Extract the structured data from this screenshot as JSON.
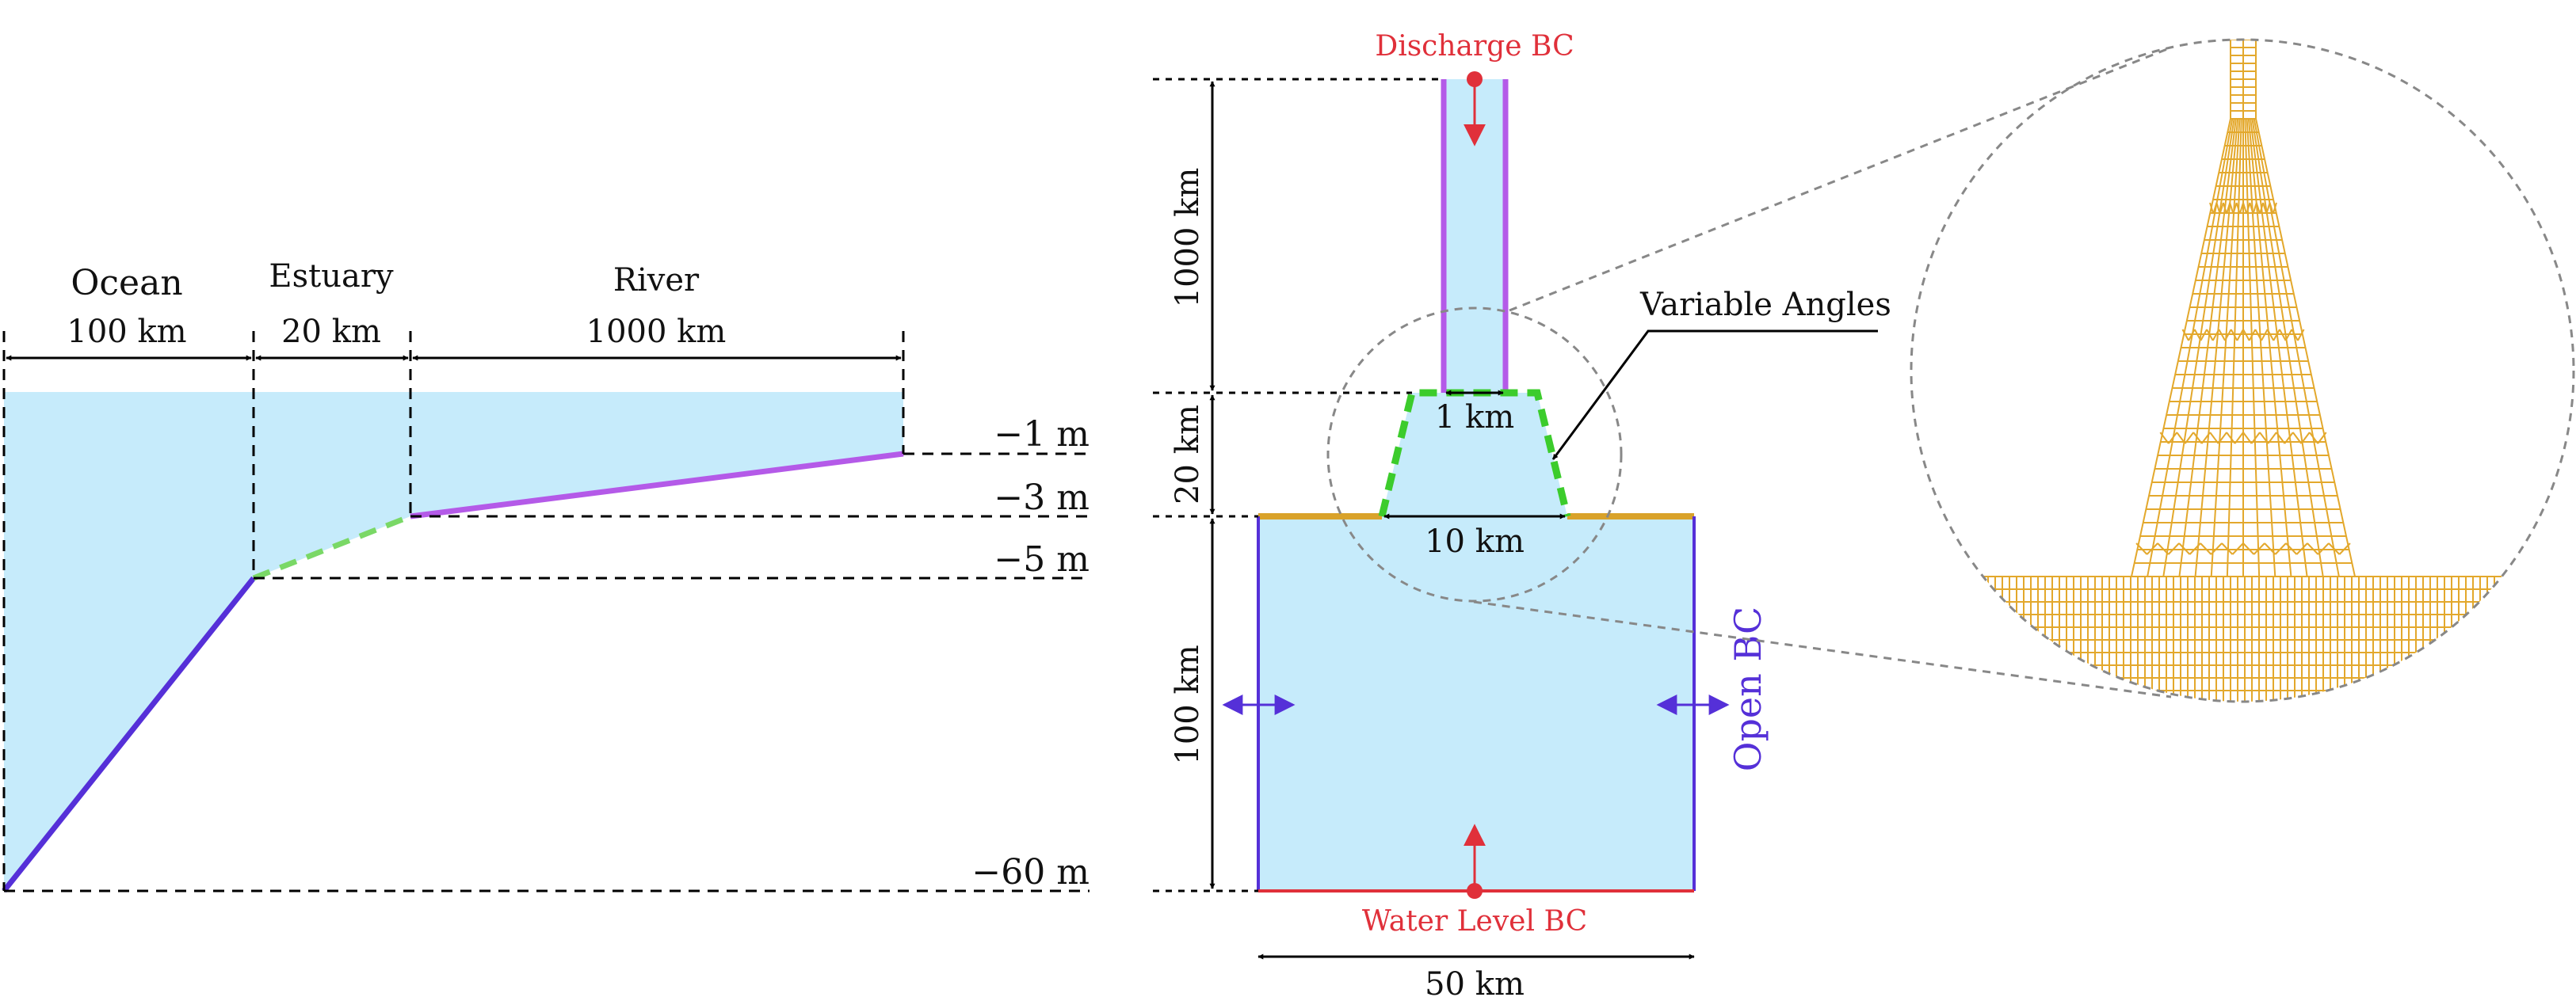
{
  "profile": {
    "regions": {
      "ocean": "Ocean",
      "estuary": "Estuary",
      "river": "River"
    },
    "lengths": {
      "ocean": "100 km",
      "estuary": "20 km",
      "river": "1000 km"
    },
    "depths": {
      "d1": "−1 m",
      "d3": "−3 m",
      "d5": "−5 m",
      "d60": "−60 m"
    }
  },
  "plan": {
    "discharge_bc": "Discharge BC",
    "water_level_bc": "Water Level BC",
    "open_bc": "Open BC",
    "variable_angles": "Variable Angles",
    "river_length": "1000 km",
    "estuary_length": "20 km",
    "ocean_length": "100 km",
    "river_width": "1 km",
    "estuary_width": "10 km",
    "ocean_width": "50 km"
  },
  "colors": {
    "water": "#c6ebfb",
    "river_bank": "#b45ae8",
    "ocean_slope": "#5530d8",
    "estuary": "#3ccc2c",
    "coast": "#d9a22a",
    "mesh": "#e3a82c",
    "bc_red": "#e0303a",
    "open_bc": "#5530d8"
  }
}
